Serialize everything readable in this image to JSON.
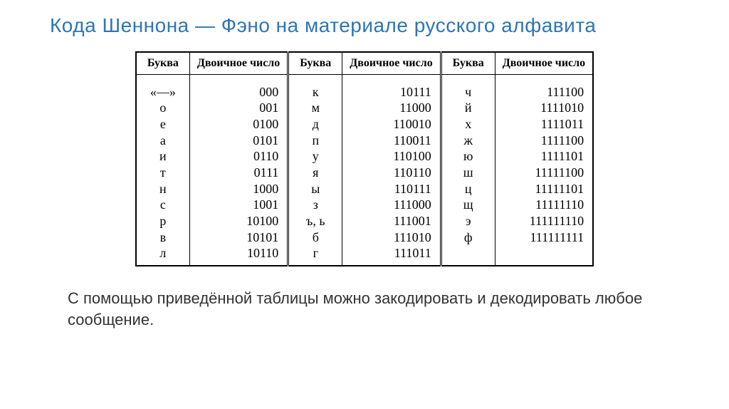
{
  "title": "Кода  Шеннона  —   Фэно на материале   русского  алфавита",
  "headers": {
    "letter": "Буква",
    "code": "Двоичное число"
  },
  "rows": [
    {
      "l1": "«—»",
      "c1": "000",
      "l2": "к",
      "c2": "10111",
      "l3": "ч",
      "c3": "111100"
    },
    {
      "l1": "о",
      "c1": "001",
      "l2": "м",
      "c2": "11000",
      "l3": "й",
      "c3": "1111010"
    },
    {
      "l1": "е",
      "c1": "0100",
      "l2": "д",
      "c2": "110010",
      "l3": "х",
      "c3": "1111011"
    },
    {
      "l1": "а",
      "c1": "0101",
      "l2": "п",
      "c2": "110011",
      "l3": "ж",
      "c3": "1111100"
    },
    {
      "l1": "и",
      "c1": "0110",
      "l2": "у",
      "c2": "110100",
      "l3": "ю",
      "c3": "1111101"
    },
    {
      "l1": "т",
      "c1": "0111",
      "l2": "я",
      "c2": "110110",
      "l3": "ш",
      "c3": "11111100"
    },
    {
      "l1": "н",
      "c1": "1000",
      "l2": "ы",
      "c2": "110111",
      "l3": "ц",
      "c3": "11111101"
    },
    {
      "l1": "с",
      "c1": "1001",
      "l2": "з",
      "c2": "111000",
      "l3": "щ",
      "c3": "11111110"
    },
    {
      "l1": "р",
      "c1": "10100",
      "l2": "ъ, ь",
      "c2": "111001",
      "l3": "э",
      "c3": "111111110"
    },
    {
      "l1": "в",
      "c1": "10101",
      "l2": "б",
      "c2": "111010",
      "l3": "ф",
      "c3": "111111111"
    },
    {
      "l1": "л",
      "c1": "10110",
      "l2": "г",
      "c2": "111011",
      "l3": "",
      "c3": ""
    }
  ],
  "caption": "С помощью приведённой таблицы можно   закодировать  и декодировать любое  сообщение.",
  "style": {
    "title_color": "#2e75b6",
    "title_fontsize": 28,
    "caption_fontsize": 22,
    "table_fontsize": 18,
    "border_color": "#000000",
    "background": "#ffffff"
  }
}
